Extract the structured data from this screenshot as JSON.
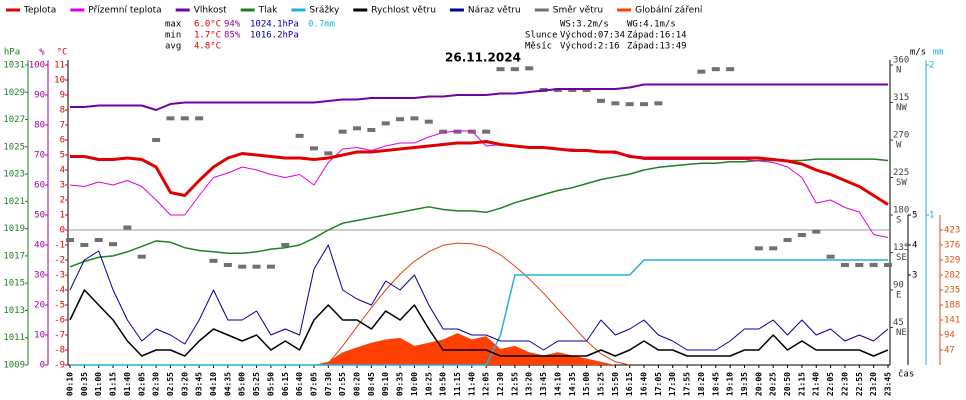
{
  "chart_data": {
    "type": "line",
    "title": "26.11.2024",
    "x_label": "čas",
    "x": [
      "00:10",
      "00:35",
      "01:00",
      "01:15",
      "01:40",
      "02:05",
      "02:30",
      "02:55",
      "03:20",
      "03:45",
      "04:10",
      "04:35",
      "05:00",
      "05:25",
      "05:50",
      "06:15",
      "06:40",
      "07:05",
      "07:30",
      "07:55",
      "08:20",
      "08:45",
      "09:10",
      "09:35",
      "10:00",
      "10:25",
      "10:50",
      "11:15",
      "11:40",
      "12:05",
      "12:30",
      "12:55",
      "13:20",
      "13:45",
      "14:10",
      "14:35",
      "15:00",
      "15:25",
      "15:50",
      "16:15",
      "16:40",
      "17:05",
      "17:30",
      "17:55",
      "18:20",
      "18:45",
      "19:10",
      "19:35",
      "20:00",
      "20:25",
      "20:50",
      "21:15",
      "21:40",
      "22:05",
      "22:30",
      "22:55",
      "23:20",
      "23:45"
    ],
    "axes": [
      {
        "unit": "hPa",
        "color": "#208020",
        "ylim": [
          1009,
          1031
        ],
        "yticks": [
          1009,
          1011,
          1013,
          1015,
          1017,
          1019,
          1021,
          1023,
          1025,
          1027,
          1029,
          1031
        ]
      },
      {
        "unit": "%",
        "color": "#a000a0",
        "ylim": [
          0,
          100
        ],
        "yticks": [
          0,
          10,
          20,
          30,
          40,
          50,
          60,
          70,
          80,
          90,
          100
        ]
      },
      {
        "unit": "°C",
        "color": "#e00000",
        "ylim": [
          -9,
          11
        ],
        "yticks": [
          -9,
          -8,
          -7,
          -6,
          -5,
          -4,
          -3,
          -2,
          -1,
          0,
          1,
          2,
          3,
          4,
          5,
          6,
          7,
          8,
          9,
          10,
          11
        ],
        "zero_line": true
      },
      {
        "unit": "m/s",
        "color": "#000000",
        "ylim": [
          0,
          10
        ],
        "yticks": [
          3,
          4,
          5
        ]
      },
      {
        "unit": "mm",
        "color": "#20b0e0",
        "ylim": [
          0,
          2
        ],
        "yticks": [
          1,
          2
        ]
      },
      {
        "color": "#404040",
        "ylim": [
          0,
          360
        ],
        "yticks": [
          45,
          90,
          135,
          180,
          225,
          270,
          315,
          360
        ],
        "tick_names": [
          "NE",
          "E",
          "SE",
          "S",
          "SW",
          "W",
          "NW",
          "N"
        ]
      },
      {
        "color": "#e05010",
        "ylim": [
          0,
          940
        ],
        "yticks": [
          47,
          94,
          141,
          188,
          235,
          282,
          329,
          376,
          423
        ]
      }
    ],
    "series": [
      {
        "name": "Teplota",
        "color": "#e00000",
        "axis": 2,
        "kind": "line",
        "width": 3,
        "values": [
          4.9,
          4.9,
          4.7,
          4.7,
          4.8,
          4.7,
          4.2,
          2.5,
          2.3,
          3.3,
          4.2,
          4.8,
          5.1,
          5.0,
          4.9,
          4.8,
          4.8,
          4.7,
          4.8,
          5.0,
          5.2,
          5.2,
          5.3,
          5.4,
          5.5,
          5.6,
          5.7,
          5.8,
          5.8,
          5.9,
          5.7,
          5.6,
          5.5,
          5.5,
          5.4,
          5.3,
          5.3,
          5.2,
          5.2,
          4.9,
          4.8,
          4.8,
          4.8,
          4.8,
          4.8,
          4.8,
          4.8,
          4.8,
          4.8,
          4.7,
          4.6,
          4.4,
          4.0,
          3.7,
          3.3,
          2.9,
          2.3,
          1.7
        ]
      },
      {
        "name": "Přízemní teplota",
        "color": "#e000e0",
        "axis": 2,
        "kind": "line",
        "width": 1,
        "values": [
          3.0,
          2.9,
          3.2,
          3.0,
          3.3,
          2.9,
          2.0,
          1.0,
          1.0,
          2.3,
          3.5,
          3.8,
          4.2,
          4.0,
          3.7,
          3.5,
          3.7,
          3.0,
          4.5,
          5.4,
          5.5,
          5.3,
          5.6,
          5.8,
          5.8,
          6.2,
          6.5,
          6.6,
          6.6,
          5.6,
          5.7,
          5.6,
          5.5,
          5.5,
          5.4,
          5.4,
          5.3,
          5.2,
          5.1,
          5.0,
          4.7,
          4.7,
          4.7,
          4.7,
          4.7,
          4.7,
          4.7,
          4.7,
          4.6,
          4.5,
          4.2,
          3.5,
          1.8,
          2.0,
          1.5,
          1.2,
          -0.3,
          -0.5
        ]
      },
      {
        "name": "Vlhkost",
        "color": "#7000a0",
        "axis": 1,
        "kind": "line",
        "width": 2,
        "values": [
          86,
          86,
          86.5,
          86.5,
          86.5,
          86.5,
          85,
          87,
          87.5,
          87.5,
          87.5,
          87.5,
          87.5,
          87.5,
          87.5,
          87.5,
          87.5,
          87.5,
          88,
          88.5,
          88.5,
          89,
          89,
          89,
          89,
          89.5,
          89.5,
          90,
          90,
          90,
          90.5,
          90.5,
          91,
          91.5,
          92,
          92,
          92,
          92,
          92,
          92.5,
          93.5,
          93.5,
          93.5,
          93.5,
          93.5,
          93.5,
          93.5,
          93.5,
          93.5,
          93.5,
          93.5,
          93.5,
          93.5,
          93.5,
          93.5,
          93.5,
          93.5,
          93.5
        ]
      },
      {
        "name": "Tlak",
        "color": "#208020",
        "axis": 0,
        "kind": "line",
        "width": 1.5,
        "values": [
          1016.2,
          1016.6,
          1016.9,
          1017.0,
          1017.3,
          1017.7,
          1018.1,
          1018.0,
          1017.6,
          1017.4,
          1017.3,
          1017.2,
          1017.2,
          1017.3,
          1017.5,
          1017.6,
          1017.8,
          1018.3,
          1018.9,
          1019.4,
          1019.6,
          1019.8,
          1020.0,
          1020.2,
          1020.4,
          1020.6,
          1020.4,
          1020.3,
          1020.3,
          1020.2,
          1020.5,
          1020.9,
          1021.2,
          1021.5,
          1021.8,
          1022.0,
          1022.3,
          1022.6,
          1022.8,
          1023.0,
          1023.3,
          1023.5,
          1023.6,
          1023.7,
          1023.8,
          1023.8,
          1023.9,
          1023.9,
          1024.0,
          1024.0,
          1024.0,
          1024.0,
          1024.1,
          1024.1,
          1024.1,
          1024.1,
          1024.1,
          1024.0
        ]
      },
      {
        "name": "Srážky",
        "color": "#20b0e0",
        "axis": 4,
        "kind": "line",
        "width": 1.5,
        "values": [
          0,
          0,
          0,
          0,
          0,
          0,
          0,
          0,
          0,
          0,
          0,
          0,
          0,
          0,
          0,
          0,
          0,
          0,
          0,
          0,
          0,
          0,
          0,
          0,
          0,
          0,
          0,
          0,
          0,
          0,
          0.2,
          0.6,
          0.6,
          0.6,
          0.6,
          0.6,
          0.6,
          0.6,
          0.6,
          0.6,
          0.7,
          0.7,
          0.7,
          0.7,
          0.7,
          0.7,
          0.7,
          0.7,
          0.7,
          0.7,
          0.7,
          0.7,
          0.7,
          0.7,
          0.7,
          0.7,
          0.7,
          0.7
        ]
      },
      {
        "name": "Rychlost větru",
        "color": "#000000",
        "axis": 3,
        "kind": "line",
        "width": 1.5,
        "values": [
          1.5,
          2.5,
          2.0,
          1.5,
          0.8,
          0.3,
          0.5,
          0.5,
          0.3,
          0.8,
          1.2,
          1.0,
          0.8,
          1.0,
          0.5,
          0.8,
          0.5,
          1.5,
          2.0,
          1.5,
          1.5,
          1.2,
          1.8,
          1.5,
          2.0,
          1.2,
          0.5,
          0.5,
          0.5,
          0.5,
          0.3,
          0.3,
          0.3,
          0.3,
          0.3,
          0.3,
          0.3,
          0.5,
          0.3,
          0.5,
          0.8,
          0.5,
          0.5,
          0.3,
          0.3,
          0.3,
          0.3,
          0.5,
          0.5,
          1.0,
          0.5,
          0.8,
          0.5,
          0.5,
          0.5,
          0.5,
          0.3,
          0.5
        ]
      },
      {
        "name": "Náraz větru",
        "color": "#0000a0",
        "axis": 3,
        "kind": "line",
        "width": 1,
        "values": [
          2.5,
          3.5,
          3.8,
          2.5,
          1.5,
          0.8,
          1.2,
          1.0,
          0.7,
          1.5,
          2.5,
          1.5,
          1.5,
          1.8,
          1.0,
          1.2,
          1.0,
          3.2,
          4.0,
          2.5,
          2.2,
          2.0,
          2.8,
          2.5,
          3.0,
          2.0,
          1.2,
          1.2,
          1.0,
          1.0,
          0.8,
          0.8,
          0.8,
          0.5,
          0.8,
          0.8,
          0.8,
          1.5,
          1.0,
          1.2,
          1.5,
          1.0,
          0.8,
          0.5,
          0.5,
          0.5,
          0.8,
          1.2,
          1.2,
          1.5,
          1.0,
          1.5,
          1.0,
          1.2,
          0.8,
          1.0,
          0.8,
          1.2
        ]
      },
      {
        "name": "Směr větru",
        "color": "#707070",
        "axis": 5,
        "kind": "scatter",
        "values": [
          150,
          144,
          150,
          145,
          165,
          130,
          270,
          296,
          296,
          296,
          125,
          120,
          118,
          118,
          118,
          144,
          275,
          260,
          254,
          280,
          284,
          282,
          290,
          295,
          296,
          292,
          280,
          280,
          280,
          280,
          355,
          355,
          356,
          330,
          330,
          330,
          330,
          317,
          314,
          313,
          313,
          314,
          null,
          null,
          352,
          355,
          355,
          null,
          140,
          140,
          150,
          156,
          160,
          130,
          120,
          120,
          120,
          120
        ]
      },
      {
        "name": "Globální záření",
        "color": "#ff4000",
        "axis": 6,
        "kind": "area",
        "values": [
          0,
          0,
          0,
          0,
          0,
          0,
          0,
          0,
          0,
          0,
          0,
          0,
          0,
          0,
          0,
          0,
          0,
          0,
          10,
          40,
          55,
          70,
          80,
          85,
          60,
          70,
          80,
          100,
          80,
          90,
          50,
          60,
          40,
          30,
          40,
          30,
          20,
          10,
          0,
          0,
          0,
          0,
          0,
          0,
          0,
          0,
          0,
          0,
          0,
          0,
          0,
          0,
          0,
          0,
          0,
          0,
          0,
          0
        ]
      },
      {
        "color": "#e04010",
        "axis": 6,
        "kind": "line",
        "width": 1,
        "values": [
          null,
          null,
          null,
          null,
          null,
          null,
          null,
          null,
          null,
          null,
          null,
          null,
          null,
          null,
          null,
          null,
          null,
          null,
          5,
          60,
          120,
          180,
          235,
          285,
          325,
          355,
          375,
          382,
          380,
          370,
          345,
          310,
          270,
          225,
          175,
          125,
          75,
          35,
          10,
          0,
          null,
          null,
          null,
          null,
          null,
          null,
          null,
          null,
          null,
          null,
          null,
          null,
          null,
          null,
          null,
          null,
          null,
          null
        ]
      }
    ]
  },
  "stats": {
    "rows": [
      [
        "max",
        "6.0°C",
        "94%",
        "1024.1hPa",
        "0.7mm"
      ],
      [
        "min",
        "1.7°C",
        "85%",
        "1016.2hPa"
      ],
      [
        "avg",
        "4.8°C"
      ]
    ],
    "wind": [
      "WS:3.2m/s",
      "WG:4.1m/s"
    ],
    "sun": [
      "Slunce",
      "Východ:07:34",
      "Západ:16:14"
    ],
    "moon": [
      "Měsíc",
      "Východ:2:16",
      "Západ:13:49"
    ]
  }
}
